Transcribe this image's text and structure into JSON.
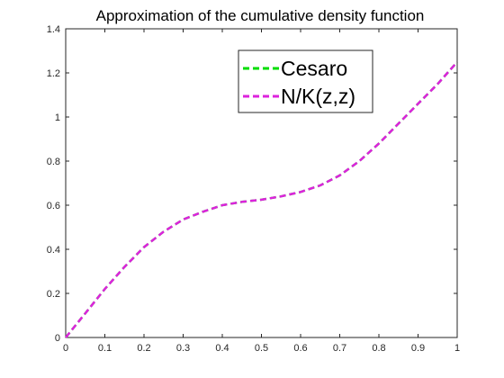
{
  "chart_data": {
    "type": "line",
    "title": "Approximation of the cumulative density function",
    "xlabel": "",
    "ylabel": "",
    "xlim": [
      0,
      1
    ],
    "ylim": [
      0,
      1.4
    ],
    "x_ticks": [
      0,
      0.1,
      0.2,
      0.3,
      0.4,
      0.5,
      0.6,
      0.7,
      0.8,
      0.9,
      1
    ],
    "x_tick_labels": [
      "0",
      "0.1",
      "0.2",
      "0.3",
      "0.4",
      "0.5",
      "0.6",
      "0.7",
      "0.8",
      "0.9",
      "1"
    ],
    "y_ticks": [
      0,
      0.2,
      0.4,
      0.6,
      0.8,
      1,
      1.2,
      1.4
    ],
    "y_tick_labels": [
      "0",
      "0.2",
      "0.4",
      "0.6",
      "0.8",
      "1",
      "1.2",
      "1.4"
    ],
    "grid": false,
    "legend_position": "top-right",
    "series": [
      {
        "name": "Cesaro",
        "color": "#00dd00",
        "style": "dashed",
        "x": [
          0,
          0.05,
          0.1,
          0.15,
          0.2,
          0.25,
          0.3,
          0.35,
          0.4,
          0.45,
          0.5,
          0.55,
          0.6,
          0.65,
          0.7,
          0.75,
          0.8,
          0.85,
          0.9,
          0.95,
          1
        ],
        "y": [
          0,
          0.11,
          0.22,
          0.32,
          0.41,
          0.48,
          0.535,
          0.57,
          0.6,
          0.615,
          0.625,
          0.64,
          0.66,
          0.69,
          0.735,
          0.8,
          0.88,
          0.97,
          1.06,
          1.15,
          1.25
        ]
      },
      {
        "name": "N/K(z,z)",
        "color": "#dd22dd",
        "style": "dashed",
        "x": [
          0,
          0.05,
          0.1,
          0.15,
          0.2,
          0.25,
          0.3,
          0.35,
          0.4,
          0.45,
          0.5,
          0.55,
          0.6,
          0.65,
          0.7,
          0.75,
          0.8,
          0.85,
          0.9,
          0.95,
          1
        ],
        "y": [
          0,
          0.11,
          0.22,
          0.32,
          0.41,
          0.48,
          0.535,
          0.57,
          0.6,
          0.615,
          0.625,
          0.64,
          0.66,
          0.69,
          0.735,
          0.8,
          0.88,
          0.97,
          1.06,
          1.15,
          1.25
        ]
      }
    ]
  }
}
